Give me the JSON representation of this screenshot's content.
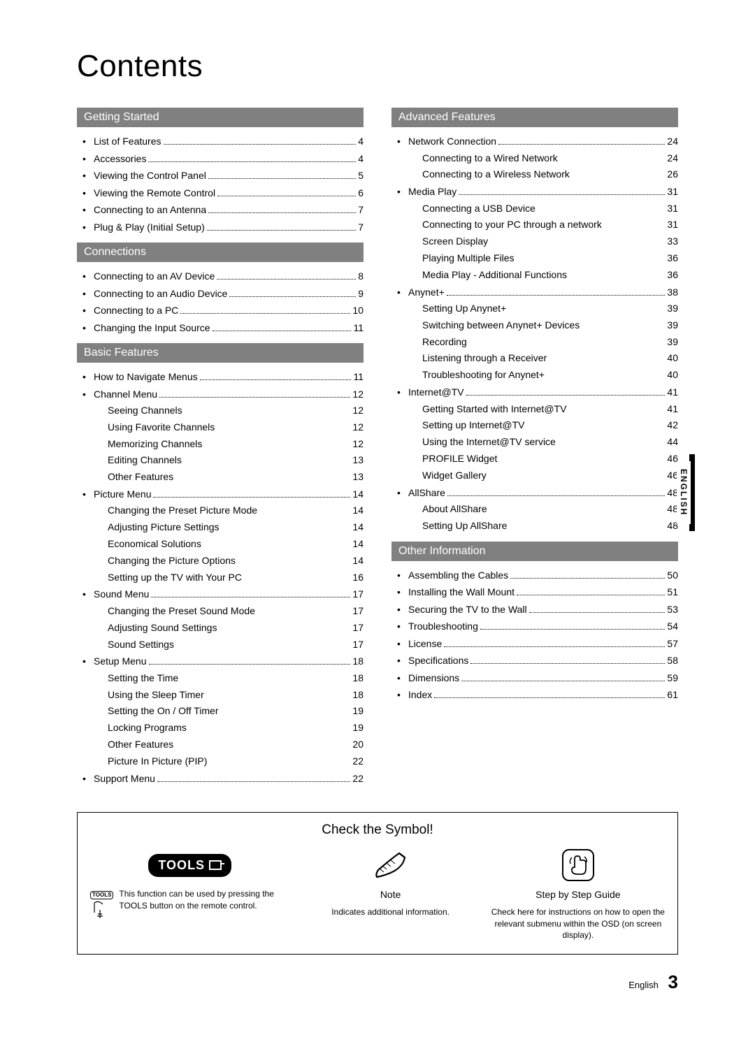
{
  "page_title": "Contents",
  "side_tab": "ENGLISH",
  "colors": {
    "section_header_bg": "#808080",
    "section_header_fg": "#ffffff",
    "text": "#000000",
    "background": "#ffffff"
  },
  "sections_left": [
    {
      "title": "Getting Started",
      "items": [
        {
          "label": "List of Features",
          "page": "4"
        },
        {
          "label": "Accessories",
          "page": "4"
        },
        {
          "label": "Viewing the Control Panel",
          "page": "5"
        },
        {
          "label": "Viewing the Remote Control",
          "page": "6"
        },
        {
          "label": "Connecting to an Antenna",
          "page": "7"
        },
        {
          "label": "Plug & Play (Initial Setup)",
          "page": "7"
        }
      ]
    },
    {
      "title": "Connections",
      "items": [
        {
          "label": "Connecting to an AV Device",
          "page": "8"
        },
        {
          "label": "Connecting to an Audio Device",
          "page": "9"
        },
        {
          "label": "Connecting to a PC",
          "page": "10"
        },
        {
          "label": "Changing the Input Source",
          "page": "11"
        }
      ]
    },
    {
      "title": "Basic Features",
      "items": [
        {
          "label": "How to Navigate Menus",
          "page": "11"
        },
        {
          "label": "Channel Menu",
          "page": "12",
          "subs": [
            {
              "label": "Seeing Channels",
              "page": "12"
            },
            {
              "label": "Using Favorite Channels",
              "page": "12"
            },
            {
              "label": "Memorizing Channels",
              "page": "12"
            },
            {
              "label": "Editing Channels",
              "page": "13"
            },
            {
              "label": "Other Features",
              "page": "13"
            }
          ]
        },
        {
          "label": "Picture Menu",
          "page": "14",
          "subs": [
            {
              "label": "Changing the Preset Picture Mode",
              "page": "14"
            },
            {
              "label": "Adjusting Picture Settings",
              "page": "14"
            },
            {
              "label": "Economical Solutions",
              "page": "14"
            },
            {
              "label": "Changing the Picture Options",
              "page": "14"
            },
            {
              "label": "Setting up the TV with Your PC",
              "page": "16"
            }
          ]
        },
        {
          "label": "Sound Menu",
          "page": "17",
          "subs": [
            {
              "label": "Changing the Preset Sound Mode",
              "page": "17"
            },
            {
              "label": "Adjusting Sound Settings",
              "page": "17"
            },
            {
              "label": "Sound Settings",
              "page": "17"
            }
          ]
        },
        {
          "label": "Setup Menu",
          "page": "18",
          "subs": [
            {
              "label": "Setting the Time",
              "page": "18"
            },
            {
              "label": "Using the Sleep Timer",
              "page": "18"
            },
            {
              "label": "Setting the On / Off Timer",
              "page": "19"
            },
            {
              "label": "Locking Programs",
              "page": "19"
            },
            {
              "label": "Other Features",
              "page": "20"
            },
            {
              "label": "Picture In Picture (PIP)",
              "page": "22"
            }
          ]
        },
        {
          "label": "Support Menu",
          "page": "22"
        }
      ]
    }
  ],
  "sections_right": [
    {
      "title": "Advanced Features",
      "items": [
        {
          "label": "Network Connection",
          "page": "24",
          "subs": [
            {
              "label": "Connecting to a Wired Network",
              "page": "24"
            },
            {
              "label": "Connecting to a Wireless Network",
              "page": "26"
            }
          ]
        },
        {
          "label": "Media Play",
          "page": "31",
          "subs": [
            {
              "label": "Connecting a USB Device",
              "page": "31"
            },
            {
              "label": "Connecting to your PC through a network",
              "page": "31"
            },
            {
              "label": "Screen Display",
              "page": "33"
            },
            {
              "label": "Playing Multiple Files",
              "page": "36"
            },
            {
              "label": "Media Play - Additional Functions",
              "page": "36"
            }
          ]
        },
        {
          "label": "Anynet+",
          "page": "38",
          "subs": [
            {
              "label": "Setting Up Anynet+",
              "page": "39"
            },
            {
              "label": "Switching between Anynet+ Devices",
              "page": "39"
            },
            {
              "label": "Recording",
              "page": "39"
            },
            {
              "label": "Listening through a Receiver",
              "page": "40"
            },
            {
              "label": "Troubleshooting for Anynet+",
              "page": "40"
            }
          ]
        },
        {
          "label": "Internet@TV",
          "page": "41",
          "subs": [
            {
              "label": "Getting Started with Internet@TV",
              "page": "41"
            },
            {
              "label": "Setting up Internet@TV",
              "page": "42"
            },
            {
              "label": "Using the Internet@TV service",
              "page": "44"
            },
            {
              "label": "PROFILE Widget",
              "page": "46"
            },
            {
              "label": "Widget Gallery",
              "page": "46"
            }
          ]
        },
        {
          "label": "AllShare",
          "page": "48",
          "subs": [
            {
              "label": "About AllShare",
              "page": "48"
            },
            {
              "label": "Setting Up AllShare",
              "page": "48"
            }
          ]
        }
      ]
    },
    {
      "title": "Other Information",
      "items": [
        {
          "label": "Assembling the Cables",
          "page": "50"
        },
        {
          "label": "Installing the Wall Mount",
          "page": "51"
        },
        {
          "label": "Securing the TV to the Wall",
          "page": "53"
        },
        {
          "label": "Troubleshooting",
          "page": "54"
        },
        {
          "label": "License",
          "page": "57"
        },
        {
          "label": "Specifications",
          "page": "58"
        },
        {
          "label": "Dimensions",
          "page": "59"
        },
        {
          "label": "Index",
          "page": "61"
        }
      ]
    }
  ],
  "symbol_box": {
    "title": "Check the Symbol!",
    "cols": [
      {
        "icon": "tools-badge",
        "badge_text": "TOOLS",
        "heading": "",
        "desc": "This function can be used by pressing the TOOLS button on the remote control.",
        "remote_label": "TOOLS"
      },
      {
        "icon": "pencil",
        "heading": "Note",
        "desc": "Indicates additional information."
      },
      {
        "icon": "finger",
        "heading": "Step by Step Guide",
        "desc": "Check here for instructions on how to open the relevant submenu within the OSD (on screen display)."
      }
    ]
  },
  "footer": {
    "lang": "English",
    "page_number": "3"
  }
}
